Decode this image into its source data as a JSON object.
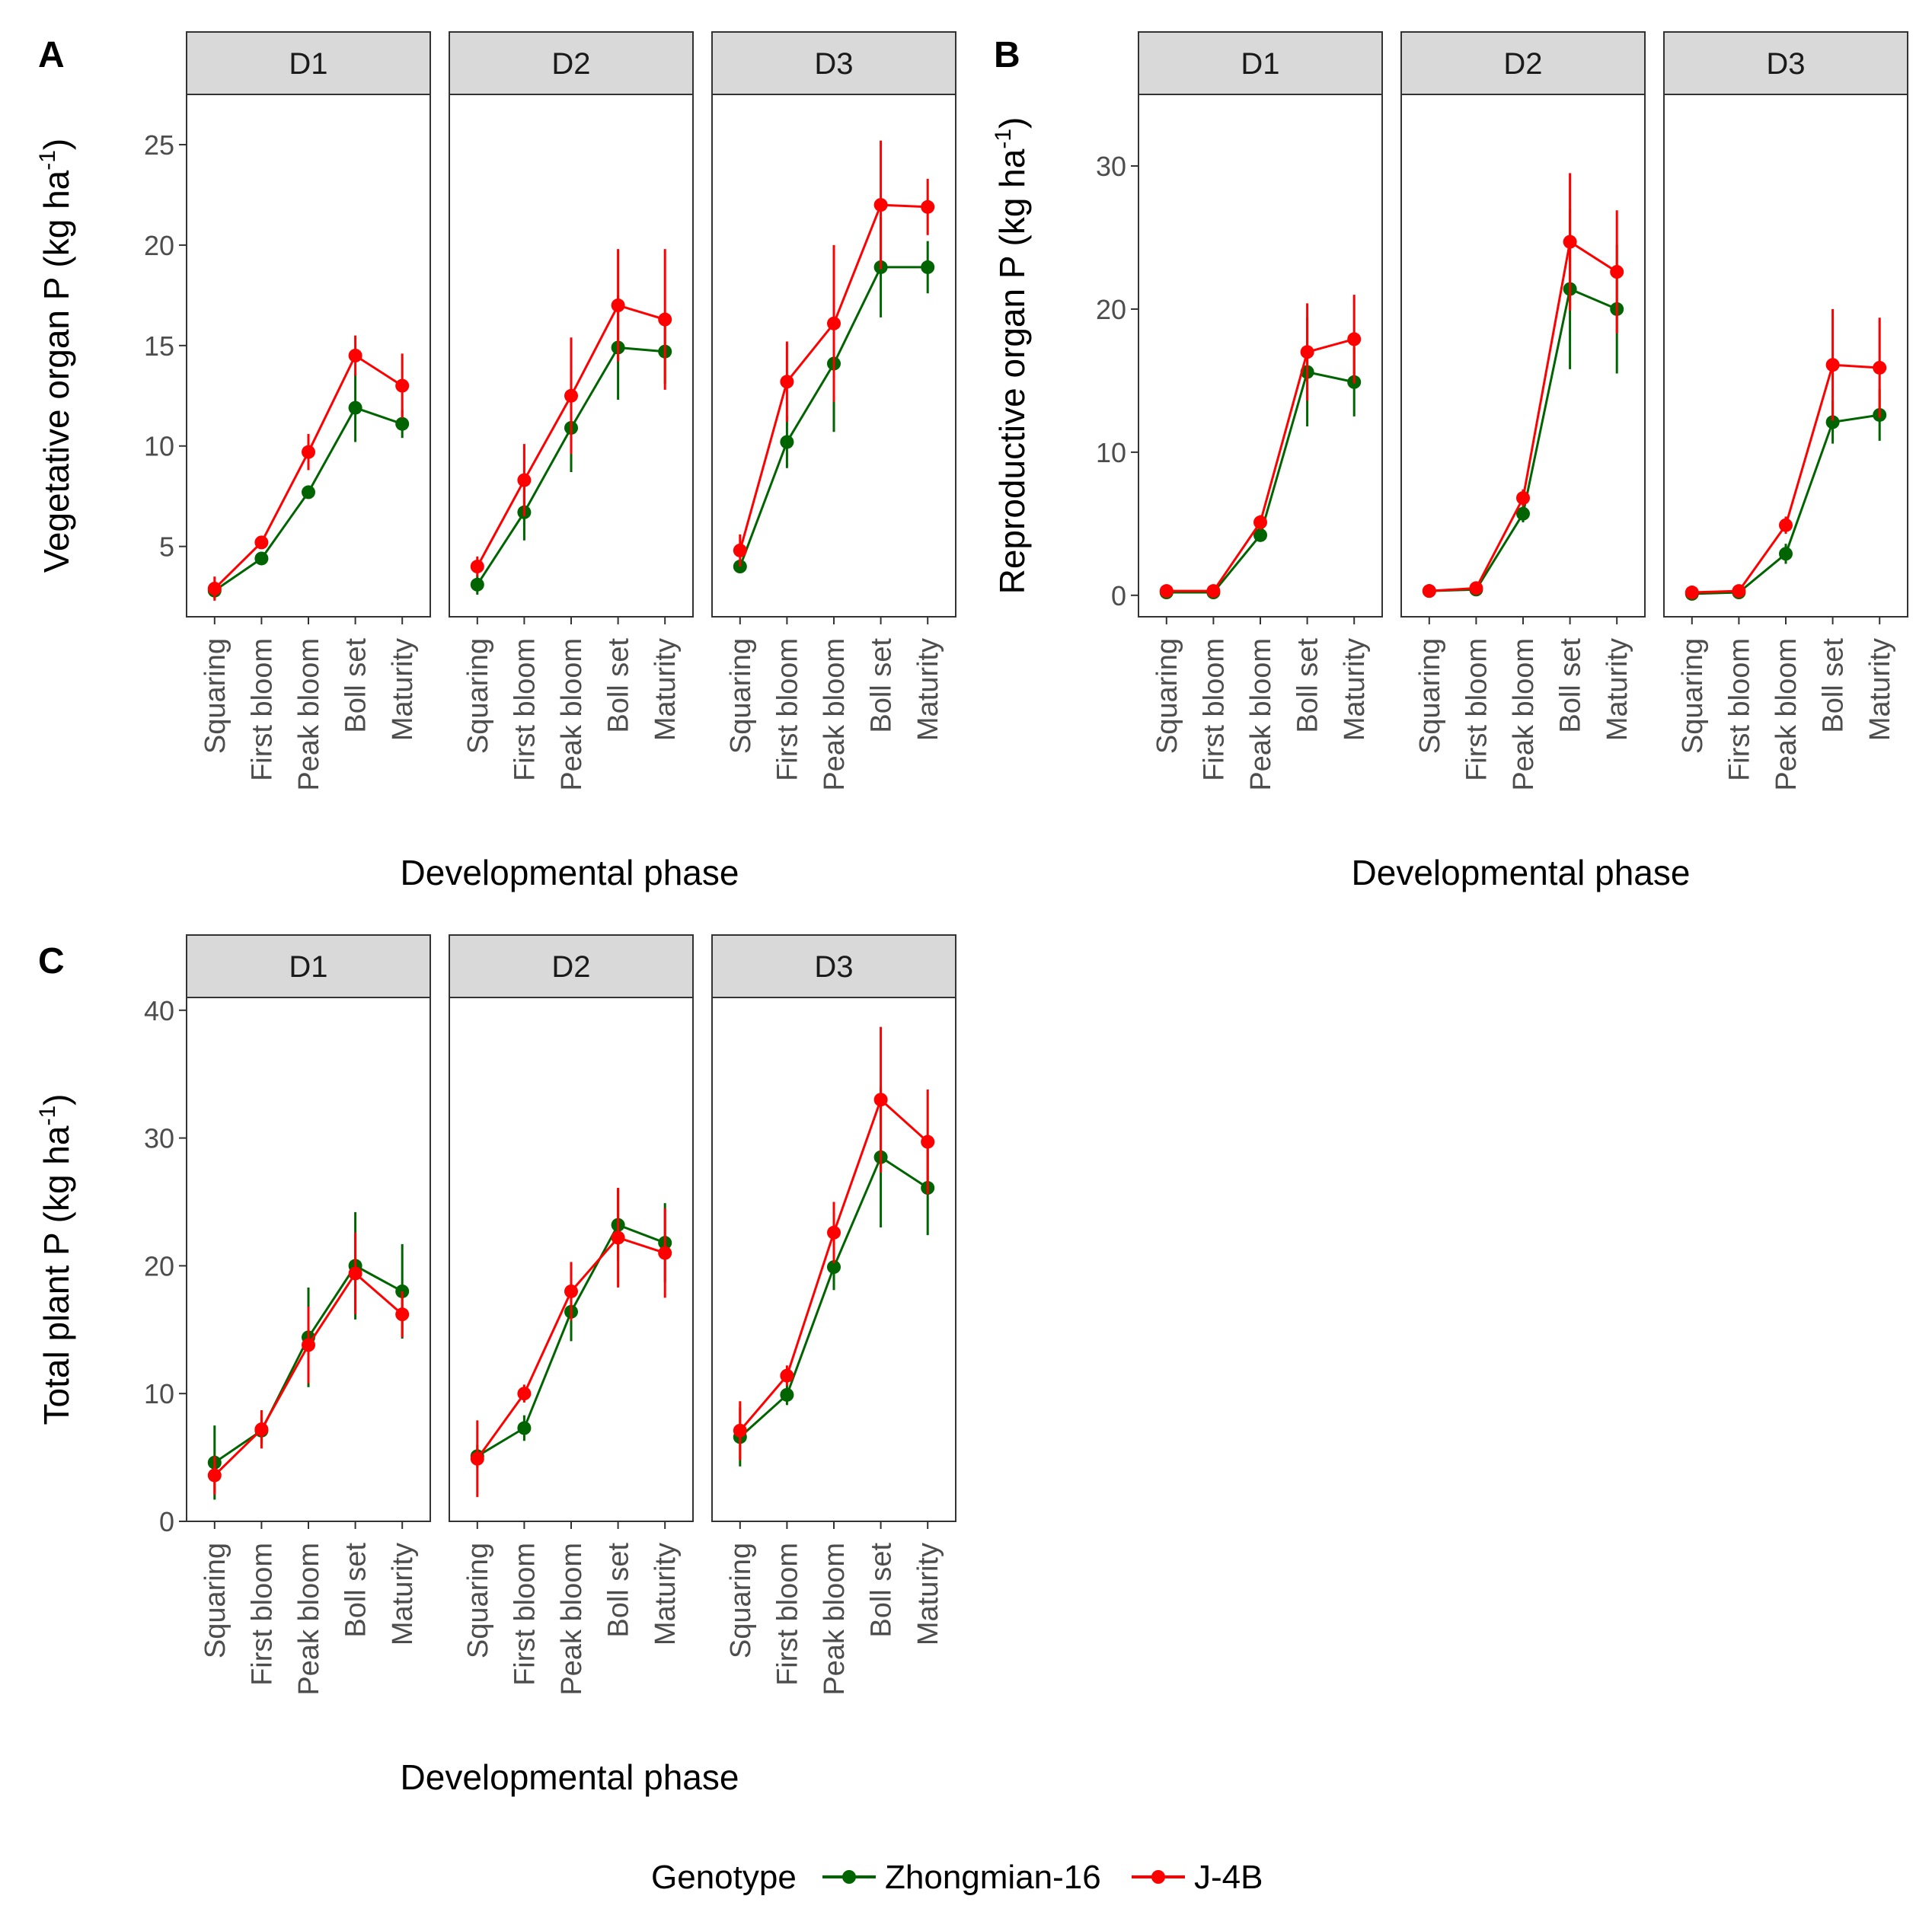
{
  "legend": {
    "title": "Genotype",
    "entries": [
      {
        "label": "Zhongmian-16",
        "color": "#006400"
      },
      {
        "label": "J-4B",
        "color": "#ff0000"
      }
    ]
  },
  "chart_data": [
    {
      "panel_label": "A",
      "type": "line",
      "xlabel": "Developmental phase",
      "ylabel_main": "Vegetative organ P (kg ha",
      "ylabel_sup": "-1",
      "ylabel_close": ")",
      "ylim": [
        1.5,
        27.5
      ],
      "y_ticks": [
        "5",
        "10",
        "15",
        "20",
        "25"
      ],
      "y_tick_values": [
        5,
        10,
        15,
        20,
        25
      ],
      "categories": [
        "Squaring",
        "First bloom",
        "Peak bloom",
        "Boll set",
        "Maturity"
      ],
      "facets": [
        {
          "label": "D1",
          "series": [
            {
              "name": "Zhongmian-16",
              "values": [
                2.8,
                4.4,
                7.7,
                11.9,
                11.1
              ],
              "errors": [
                0.4,
                0.3,
                0.3,
                1.7,
                0.7
              ]
            },
            {
              "name": "J-4B",
              "values": [
                2.9,
                5.2,
                9.7,
                14.5,
                13.0
              ],
              "errors": [
                0.6,
                0.3,
                0.9,
                1.0,
                1.6
              ]
            }
          ]
        },
        {
          "label": "D2",
          "series": [
            {
              "name": "Zhongmian-16",
              "values": [
                3.1,
                6.7,
                10.9,
                14.9,
                14.7
              ],
              "errors": [
                0.5,
                1.4,
                2.2,
                2.6,
                1.6
              ]
            },
            {
              "name": "J-4B",
              "values": [
                4.0,
                8.3,
                12.5,
                17.0,
                16.3
              ],
              "errors": [
                0.5,
                1.8,
                2.9,
                2.8,
                3.5
              ]
            }
          ]
        },
        {
          "label": "D3",
          "series": [
            {
              "name": "Zhongmian-16",
              "values": [
                4.0,
                10.2,
                14.1,
                18.9,
                18.9
              ],
              "errors": [
                0.3,
                1.3,
                3.4,
                2.5,
                1.3
              ]
            },
            {
              "name": "J-4B",
              "values": [
                4.8,
                13.2,
                16.1,
                22.0,
                21.9
              ],
              "errors": [
                0.8,
                2.0,
                3.9,
                3.2,
                1.4
              ]
            }
          ]
        }
      ]
    },
    {
      "panel_label": "B",
      "type": "line",
      "xlabel": "Developmental phase",
      "ylabel_main": "Reproductive organ P (kg ha",
      "ylabel_sup": "-1",
      "ylabel_close": ")",
      "ylim": [
        -1.5,
        35
      ],
      "y_ticks": [
        "0",
        "10",
        "20",
        "30"
      ],
      "y_tick_values": [
        0,
        10,
        20,
        30
      ],
      "categories": [
        "Squaring",
        "First bloom",
        "Peak bloom",
        "Boll set",
        "Maturity"
      ],
      "facets": [
        {
          "label": "D1",
          "series": [
            {
              "name": "Zhongmian-16",
              "values": [
                0.2,
                0.2,
                4.2,
                15.6,
                14.9
              ],
              "errors": [
                0.1,
                0.1,
                0.4,
                3.8,
                2.4
              ]
            },
            {
              "name": "J-4B",
              "values": [
                0.3,
                0.3,
                5.1,
                17.0,
                17.9
              ],
              "errors": [
                0.1,
                0.1,
                0.5,
                3.4,
                3.1
              ]
            }
          ]
        },
        {
          "label": "D2",
          "series": [
            {
              "name": "Zhongmian-16",
              "values": [
                0.3,
                0.4,
                5.7,
                21.4,
                20.0
              ],
              "errors": [
                0.1,
                0.1,
                0.6,
                5.6,
                4.5
              ]
            },
            {
              "name": "J-4B",
              "values": [
                0.3,
                0.5,
                6.8,
                24.7,
                22.6
              ],
              "errors": [
                0.1,
                0.1,
                0.6,
                4.8,
                4.3
              ]
            }
          ]
        },
        {
          "label": "D3",
          "series": [
            {
              "name": "Zhongmian-16",
              "values": [
                0.1,
                0.2,
                2.9,
                12.1,
                12.6
              ],
              "errors": [
                0.1,
                0.1,
                0.7,
                1.5,
                1.8
              ]
            },
            {
              "name": "J-4B",
              "values": [
                0.2,
                0.3,
                4.9,
                16.1,
                15.9
              ],
              "errors": [
                0.1,
                0.1,
                0.6,
                3.9,
                3.5
              ]
            }
          ]
        }
      ]
    },
    {
      "panel_label": "C",
      "type": "line",
      "xlabel": "Developmental phase",
      "ylabel_main": "Total plant P (kg ha",
      "ylabel_sup": "-1",
      "ylabel_close": ")",
      "ylim": [
        0,
        41
      ],
      "y_ticks": [
        "0",
        "10",
        "20",
        "30",
        "40"
      ],
      "y_tick_values": [
        0,
        10,
        20,
        30,
        40
      ],
      "categories": [
        "Squaring",
        "First bloom",
        "Peak bloom",
        "Boll set",
        "Maturity"
      ],
      "facets": [
        {
          "label": "D1",
          "series": [
            {
              "name": "Zhongmian-16",
              "values": [
                4.6,
                7.1,
                14.4,
                20.0,
                18.0
              ],
              "errors": [
                2.9,
                1.0,
                3.9,
                4.2,
                3.7
              ]
            },
            {
              "name": "J-4B",
              "values": [
                3.6,
                7.2,
                13.8,
                19.4,
                16.2
              ],
              "errors": [
                1.5,
                1.5,
                3.0,
                3.2,
                1.8
              ]
            }
          ]
        },
        {
          "label": "D2",
          "series": [
            {
              "name": "Zhongmian-16",
              "values": [
                5.1,
                7.3,
                16.4,
                23.2,
                21.8
              ],
              "errors": [
                0.9,
                1.0,
                2.3,
                2.8,
                3.1
              ]
            },
            {
              "name": "J-4B",
              "values": [
                4.9,
                10.0,
                18.0,
                22.2,
                21.0
              ],
              "errors": [
                3.0,
                0.7,
                2.3,
                3.9,
                3.5
              ]
            }
          ]
        },
        {
          "label": "D3",
          "series": [
            {
              "name": "Zhongmian-16",
              "values": [
                6.6,
                9.9,
                19.9,
                28.5,
                26.1
              ],
              "errors": [
                2.3,
                0.8,
                1.8,
                5.5,
                3.7
              ]
            },
            {
              "name": "J-4B",
              "values": [
                7.1,
                11.4,
                22.6,
                33.0,
                29.7
              ],
              "errors": [
                2.3,
                0.8,
                2.4,
                5.7,
                4.1
              ]
            }
          ]
        }
      ]
    }
  ]
}
